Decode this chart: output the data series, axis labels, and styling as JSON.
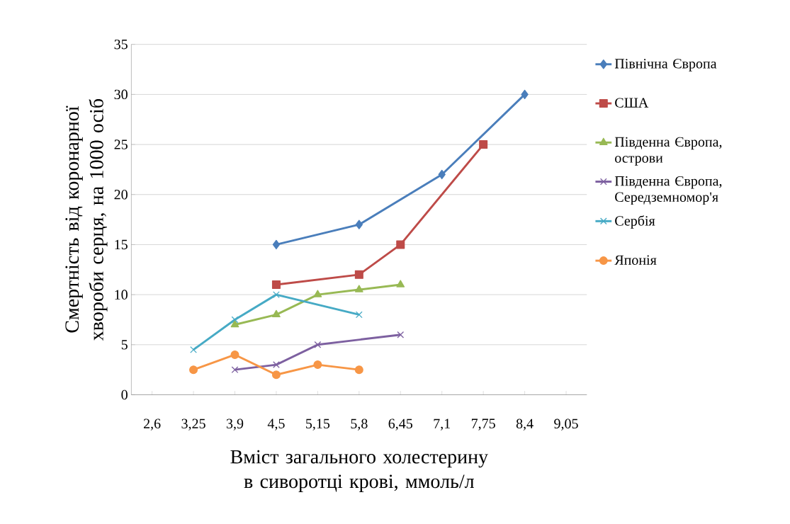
{
  "chart_data": {
    "type": "line",
    "xlabel": "Вміст загального холестерину в сиворотці крові, ммоль/л",
    "ylabel": "Смертність від коронарної хвороби серця, на 1000 осіб",
    "categories": [
      "2,6",
      "3,25",
      "3,9",
      "4,5",
      "5,15",
      "5,8",
      "6,45",
      "7,1",
      "7,75",
      "8,4",
      "9,05"
    ],
    "series": [
      {
        "name": "Північна Європа",
        "color": "#4a7ebb",
        "marker": "diamond",
        "values": [
          null,
          null,
          null,
          15,
          null,
          17,
          null,
          22,
          null,
          30,
          null
        ]
      },
      {
        "name": "США",
        "color": "#be4b48",
        "marker": "square",
        "values": [
          null,
          null,
          null,
          11,
          null,
          12,
          15,
          null,
          25,
          null,
          null
        ]
      },
      {
        "name": "Південна Європа, острови",
        "color": "#98b954",
        "marker": "triangle",
        "values": [
          null,
          null,
          7,
          8,
          10,
          10.5,
          11,
          null,
          null,
          null,
          null
        ]
      },
      {
        "name": "Південна Європа, Середземномор'я",
        "color": "#7d60a0",
        "marker": "cross",
        "values": [
          null,
          null,
          2.5,
          3,
          5,
          null,
          6,
          null,
          null,
          null,
          null
        ]
      },
      {
        "name": "Сербія",
        "color": "#46aac5",
        "marker": "cross",
        "values": [
          null,
          4.5,
          7.5,
          10,
          null,
          8,
          null,
          null,
          null,
          null,
          null
        ]
      },
      {
        "name": "Японія",
        "color": "#f79646",
        "marker": "circle",
        "values": [
          null,
          2.5,
          4,
          2,
          3,
          2.5,
          null,
          null,
          null,
          null,
          null
        ]
      }
    ],
    "ylim": [
      0,
      35
    ],
    "yticks": [
      0,
      5,
      10,
      15,
      20,
      25,
      30,
      35
    ],
    "grid": "y",
    "legend": "right"
  }
}
